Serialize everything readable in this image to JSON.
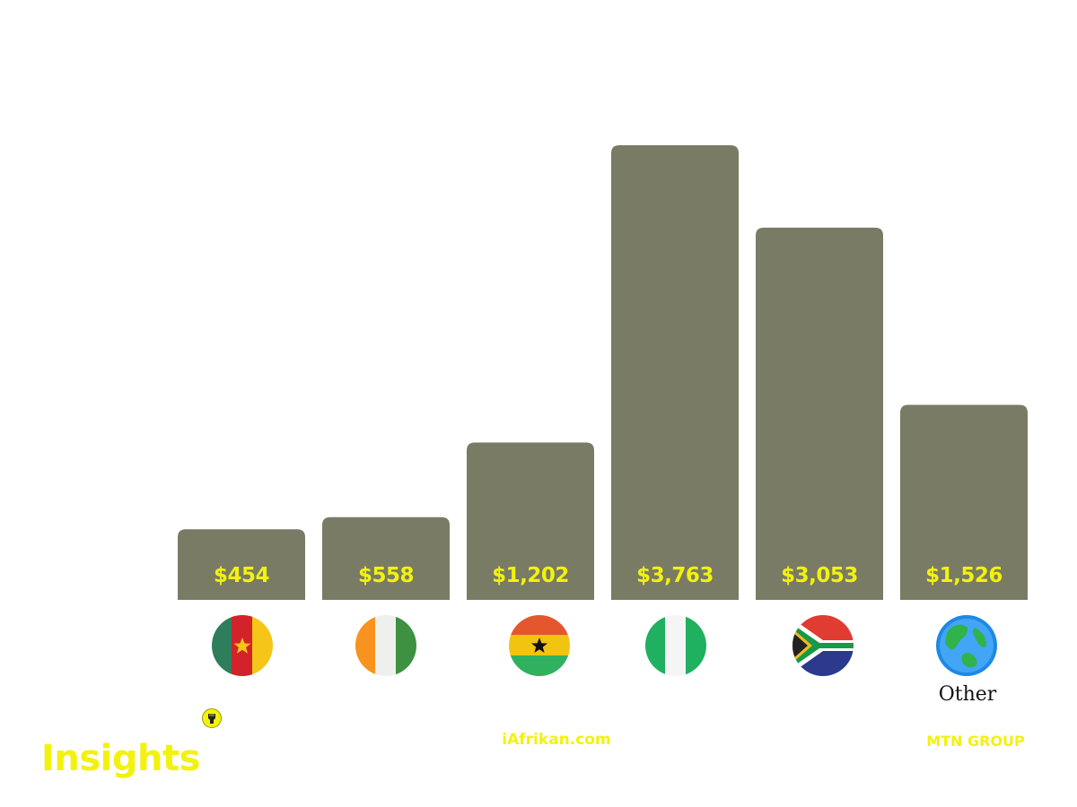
{
  "colors": {
    "bar": "#797b65",
    "accent": "#f2f20d",
    "background": "#ffffff"
  },
  "chart_data": {
    "type": "bar",
    "title": "",
    "xlabel": "",
    "ylabel": "",
    "unit": "$",
    "categories": [
      "Cameroon",
      "Côte d'Ivoire",
      "Ghana",
      "Nigeria",
      "South Africa",
      "Other"
    ],
    "values": [
      454,
      558,
      1202,
      3763,
      3053,
      1526
    ],
    "value_labels": [
      "$454",
      "$558",
      "$1,202",
      "$3,763",
      "$3,053",
      "$1,526"
    ],
    "flag_icons": [
      "cameroon-flag-icon",
      "cote-divoire-flag-icon",
      "ghana-flag-icon",
      "nigeria-flag-icon",
      "south-africa-flag-icon",
      "globe-icon"
    ],
    "other_label": "Other",
    "ylim": [
      0,
      4000
    ],
    "grid": false,
    "legend": "none"
  },
  "branding": {
    "title": "Insights",
    "logo_icon": "fist-icon",
    "site": "iAfrikan.com",
    "source": "MTN GROUP"
  }
}
